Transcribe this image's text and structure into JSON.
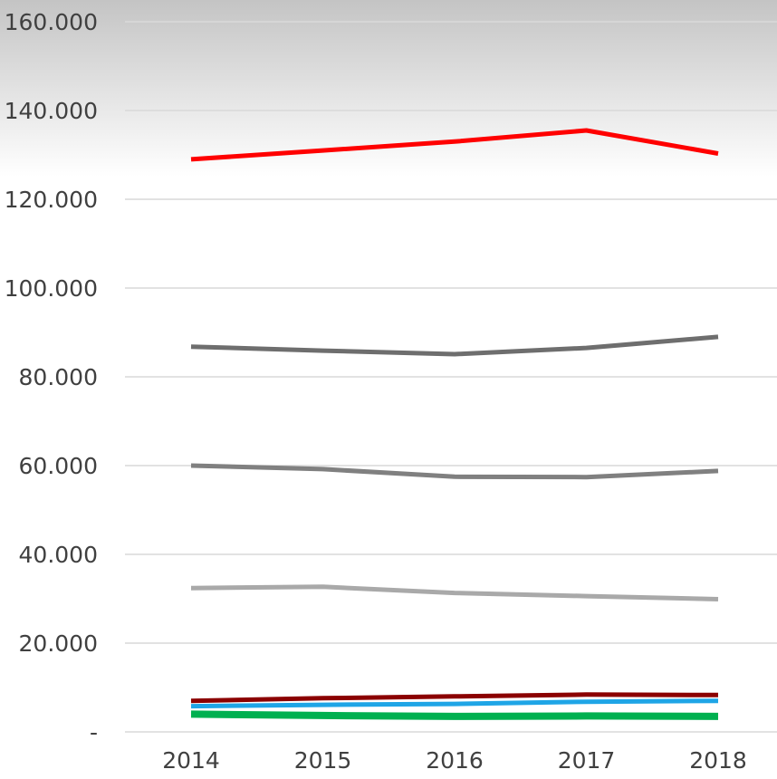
{
  "chart_data": {
    "type": "line",
    "title": "",
    "xlabel": "",
    "ylabel": "",
    "categories": [
      "2014",
      "2015",
      "2016",
      "2017",
      "2018"
    ],
    "ylim": [
      0,
      160000
    ],
    "yticks": [
      0,
      20000,
      40000,
      60000,
      80000,
      100000,
      120000,
      140000,
      160000
    ],
    "ytick_labels": [
      "-",
      "20.000",
      "40.000",
      "60.000",
      "80.000",
      "100.000",
      "120.000",
      "140.000",
      "160.000"
    ],
    "grid": true,
    "legend": "none",
    "header_gradient": {
      "top": "#c4c4c4",
      "bottom": "#ffffff"
    },
    "series": [
      {
        "color": "#ff0000",
        "values": [
          129000,
          131000,
          133000,
          135500,
          130300
        ]
      },
      {
        "color": "#6e6e6e",
        "values": [
          86800,
          85900,
          85100,
          86500,
          89000
        ]
      },
      {
        "color": "#808080",
        "values": [
          60000,
          59200,
          57500,
          57400,
          58800
        ]
      },
      {
        "color": "#a9a9a9",
        "values": [
          32400,
          32700,
          31300,
          30600,
          29900
        ]
      },
      {
        "color": "#8b0000",
        "values": [
          7000,
          7600,
          8000,
          8400,
          8300
        ]
      },
      {
        "color": "#1fa5e6",
        "values": [
          5800,
          6100,
          6300,
          6800,
          7000
        ]
      },
      {
        "color": "#00b050",
        "values": [
          4000,
          3700,
          3500,
          3600,
          3500
        ]
      }
    ]
  }
}
